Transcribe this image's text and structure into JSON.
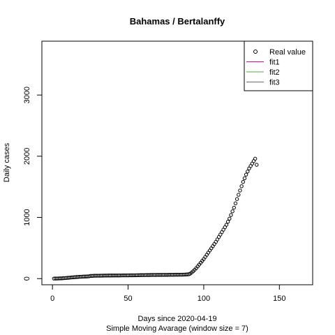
{
  "chart_data": {
    "type": "scatter",
    "title": "Bahamas / Bertalanffy",
    "xlabel": "Days since 2020-04-19",
    "subtitle": "Simple Moving Avarage (window size = 7)",
    "ylabel": "Daily cases",
    "xlim": [
      -7,
      172
    ],
    "ylim": [
      -100,
      3880
    ],
    "xticks": [
      0,
      50,
      100,
      150
    ],
    "yticks": [
      0,
      1000,
      2000,
      3000
    ],
    "grid": false,
    "legend_position": "top-right",
    "legend": [
      {
        "label": "Real value",
        "symbol": "circle",
        "color": "#000000"
      },
      {
        "label": "fit1",
        "symbol": "line",
        "color": "#9e2b73"
      },
      {
        "label": "fit2",
        "symbol": "line",
        "color": "#4dae3a"
      },
      {
        "label": "fit3",
        "symbol": "line",
        "color": "#2c7bd6"
      }
    ],
    "series": [
      {
        "name": "Real value",
        "style": "points",
        "x": [
          1,
          2,
          3,
          4,
          5,
          6,
          7,
          8,
          9,
          10,
          11,
          12,
          13,
          14,
          15,
          16,
          17,
          18,
          19,
          20,
          21,
          22,
          23,
          24,
          25,
          26,
          27,
          28,
          29,
          30,
          31,
          32,
          33,
          34,
          35,
          36,
          37,
          38,
          39,
          40,
          41,
          42,
          43,
          44,
          45,
          46,
          47,
          48,
          49,
          50,
          51,
          52,
          53,
          54,
          55,
          56,
          57,
          58,
          59,
          60,
          61,
          62,
          63,
          64,
          65,
          66,
          67,
          68,
          69,
          70,
          71,
          72,
          73,
          74,
          75,
          76,
          77,
          78,
          79,
          80,
          81,
          82,
          83,
          84,
          85,
          86,
          87,
          88,
          89,
          90,
          91,
          92,
          93,
          94,
          95,
          96,
          97,
          98,
          99,
          100,
          101,
          102,
          103,
          104,
          105,
          106,
          107,
          108,
          109,
          110,
          111,
          112,
          113,
          114,
          115,
          116,
          117,
          118,
          119,
          120,
          121,
          122,
          123,
          124,
          125,
          126,
          127,
          128,
          129,
          130,
          131,
          132,
          133,
          134,
          135
        ],
        "y": [
          1,
          2,
          2,
          3,
          4,
          5,
          7,
          9,
          11,
          13,
          15,
          18,
          20,
          22,
          24,
          26,
          28,
          30,
          31,
          33,
          34,
          35,
          36,
          37,
          44,
          45,
          46,
          47,
          47,
          48,
          48,
          49,
          49,
          50,
          50,
          50,
          51,
          51,
          51,
          51,
          52,
          52,
          52,
          52,
          52,
          53,
          53,
          53,
          53,
          53,
          54,
          54,
          54,
          55,
          55,
          56,
          56,
          57,
          57,
          58,
          58,
          59,
          59,
          59,
          60,
          60,
          60,
          60,
          61,
          61,
          61,
          61,
          62,
          62,
          62,
          62,
          63,
          63,
          63,
          63,
          64,
          64,
          64,
          64,
          65,
          65,
          66,
          67,
          69,
          71,
          80,
          100,
          120,
          145,
          170,
          200,
          230,
          260,
          290,
          320,
          355,
          390,
          425,
          460,
          495,
          530,
          565,
          600,
          640,
          680,
          720,
          760,
          800,
          840,
          880,
          930,
          980,
          1040,
          1100,
          1160,
          1230,
          1300,
          1370,
          1440,
          1510,
          1580,
          1640,
          1700,
          1750,
          1800,
          1840,
          1880,
          1920,
          1960,
          1860
        ]
      },
      {
        "name": "fit1",
        "style": "line",
        "x": [],
        "y": []
      },
      {
        "name": "fit2",
        "style": "line",
        "x": [],
        "y": []
      },
      {
        "name": "fit3",
        "style": "line",
        "x": [],
        "y": []
      }
    ]
  }
}
